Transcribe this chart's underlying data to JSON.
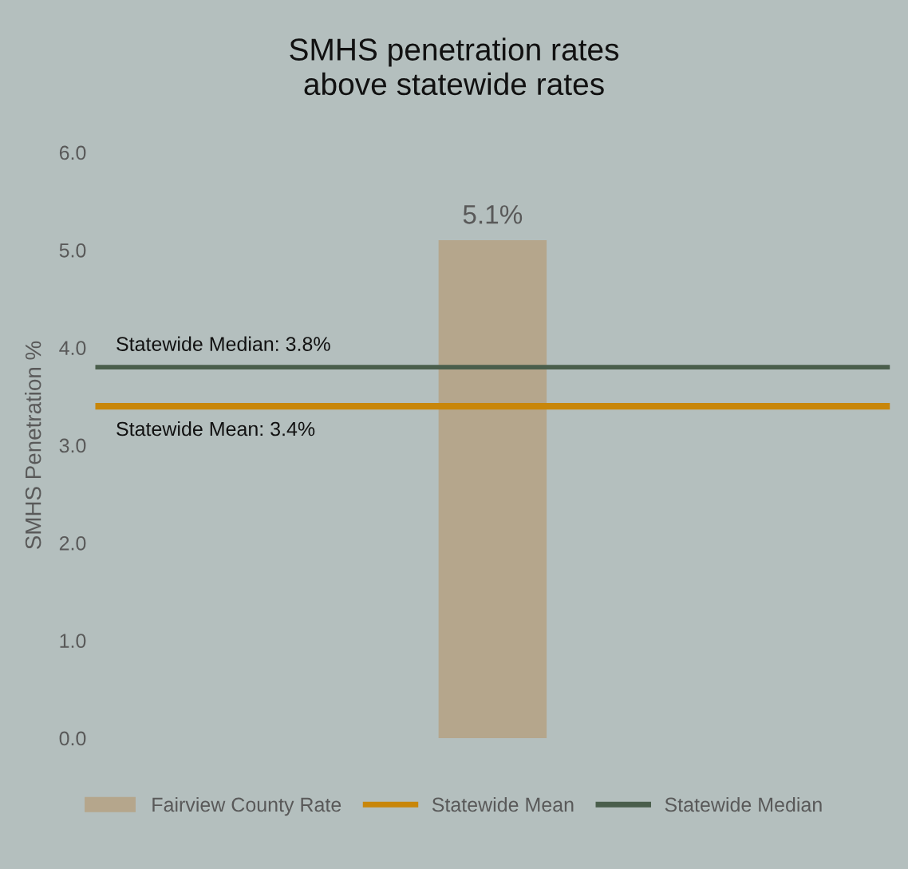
{
  "chart_data": {
    "type": "bar",
    "title": "SMHS penetration rates\nabove statewide rates",
    "ylabel": "SMHS Penetration %",
    "categories": [
      null
    ],
    "series": [
      {
        "name": "Fairview County Rate",
        "color": "#b5a68c",
        "values": [
          5.1
        ],
        "value_labels": [
          "5.1%"
        ]
      }
    ],
    "ref_lines": [
      {
        "axis": "y",
        "value": 3.4,
        "label": "Statewide Mean",
        "color": "#c8860a"
      },
      {
        "axis": "y",
        "value": 3.8,
        "label": "Statewide Median",
        "color": "#4a5e4c"
      }
    ],
    "annotations": [
      "Statewide Mean: 3.4%",
      "Statewide Median: 3.8%"
    ],
    "ylim": [
      0,
      6
    ],
    "yticks": [
      {
        "value": 0,
        "label": "0.0"
      },
      {
        "value": 1,
        "label": "1.0"
      },
      {
        "value": 2,
        "label": "2.0"
      },
      {
        "value": 3,
        "label": "3.0"
      },
      {
        "value": 4,
        "label": "4.0"
      },
      {
        "value": 5,
        "label": "5.0"
      },
      {
        "value": 6,
        "label": "6.0"
      }
    ],
    "grid": false,
    "legend": "bottom",
    "tick_labels": "y"
  }
}
